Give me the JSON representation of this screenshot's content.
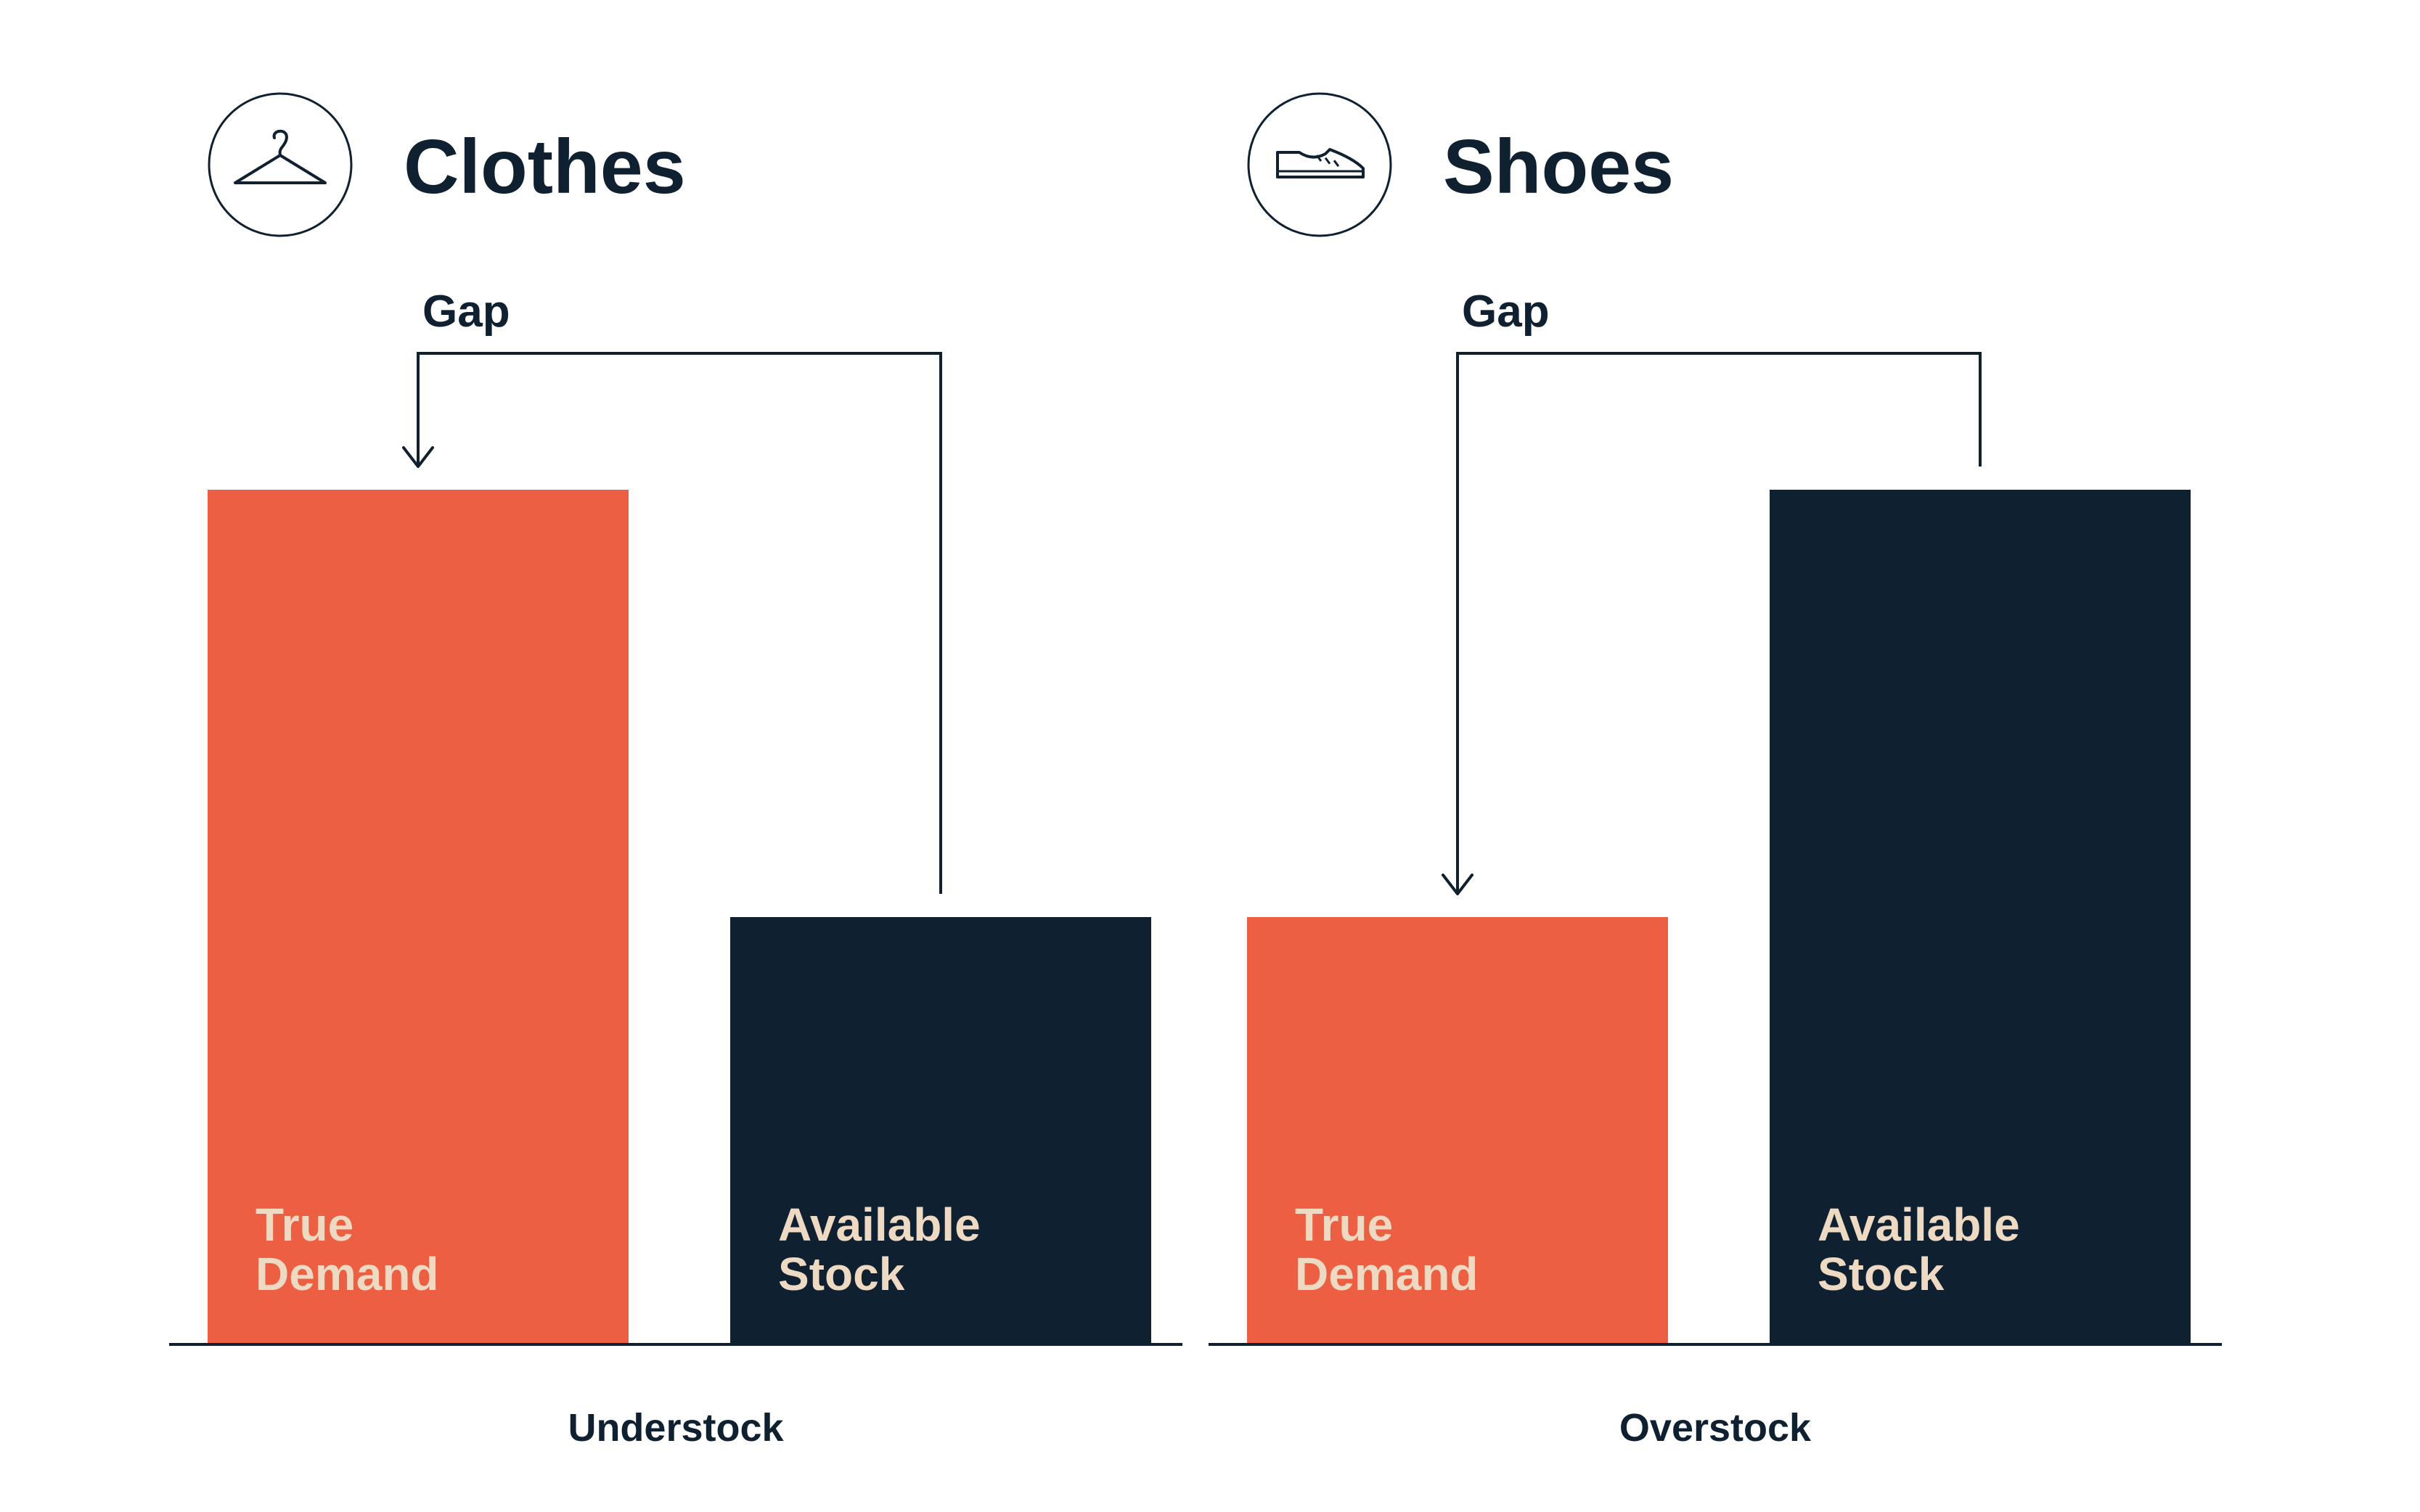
{
  "colors": {
    "demand": "#ec5f43",
    "stock": "#0f2031",
    "text_dark": "#0f2031",
    "bar_label": "#eed9c2",
    "background": "#ffffff"
  },
  "chart_data": [
    {
      "type": "bar",
      "title": "Clothes",
      "icon": "hanger-icon",
      "categories": [
        "True Demand",
        "Available Stock"
      ],
      "category_lines": [
        [
          "True",
          "Demand"
        ],
        [
          "Available",
          "Stock"
        ]
      ],
      "values": [
        100,
        50
      ],
      "ylim": [
        0,
        100
      ],
      "xlabel": "Understock",
      "annotation": "Gap",
      "gap_from": "Available Stock",
      "gap_to": "True Demand"
    },
    {
      "type": "bar",
      "title": "Shoes",
      "icon": "shoe-icon",
      "categories": [
        "True Demand",
        "Available Stock"
      ],
      "category_lines": [
        [
          "True",
          "Demand"
        ],
        [
          "Available",
          "Stock"
        ]
      ],
      "values": [
        50,
        100
      ],
      "ylim": [
        0,
        100
      ],
      "xlabel": "Overstock",
      "annotation": "Gap",
      "gap_from": "Available Stock",
      "gap_to": "True Demand"
    }
  ]
}
